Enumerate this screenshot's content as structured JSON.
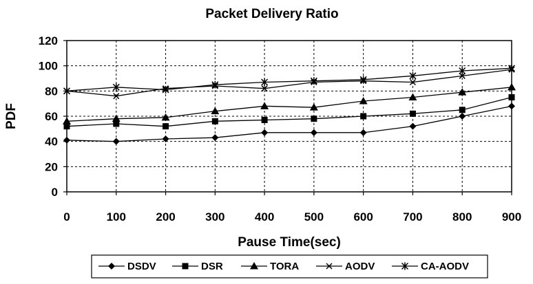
{
  "chart_data": {
    "type": "line",
    "title": "Packet Delivery Ratio",
    "xlabel": "Pause Time(sec)",
    "ylabel": "PDF",
    "x": [
      0,
      100,
      200,
      300,
      400,
      500,
      600,
      700,
      800,
      900
    ],
    "xlim": [
      0,
      900
    ],
    "ylim": [
      0,
      120
    ],
    "yticks": [
      0,
      20,
      40,
      60,
      80,
      100,
      120
    ],
    "grid": true,
    "legend_position": "bottom",
    "series": [
      {
        "name": "DSDV",
        "marker": "diamond",
        "values": [
          41,
          40,
          42,
          43,
          47,
          47,
          47,
          52,
          60,
          68
        ]
      },
      {
        "name": "DSR",
        "marker": "square",
        "values": [
          52,
          54,
          52,
          56,
          57,
          58,
          60,
          62,
          65,
          75
        ]
      },
      {
        "name": "TORA",
        "marker": "triangle",
        "values": [
          56,
          58,
          59,
          64,
          68,
          67,
          72,
          75,
          79,
          83
        ]
      },
      {
        "name": "AODV",
        "marker": "x",
        "values": [
          80,
          76,
          82,
          84,
          82,
          87,
          88,
          87,
          92,
          97
        ]
      },
      {
        "name": "CA-AODV",
        "marker": "star",
        "values": [
          80,
          83,
          81,
          85,
          87,
          88,
          89,
          92,
          96,
          98
        ]
      }
    ]
  }
}
